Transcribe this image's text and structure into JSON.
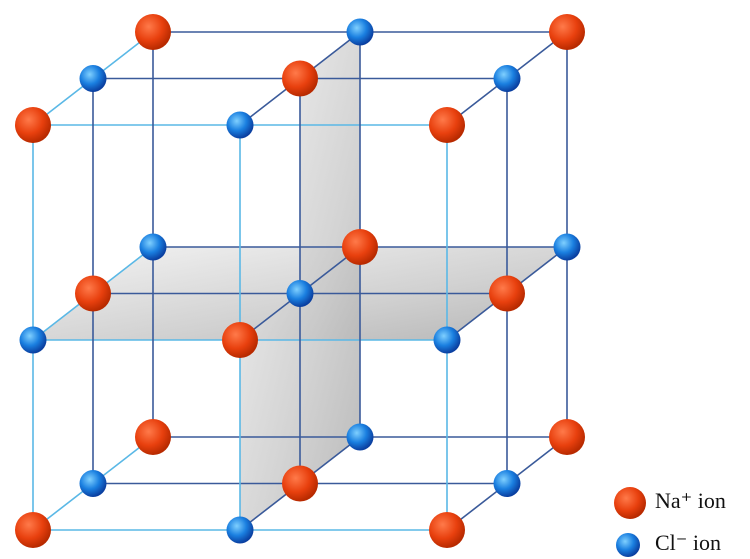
{
  "legend": [
    {
      "label": "Na⁺ ion"
    },
    {
      "label": "Cl⁻ ion"
    }
  ]
}
